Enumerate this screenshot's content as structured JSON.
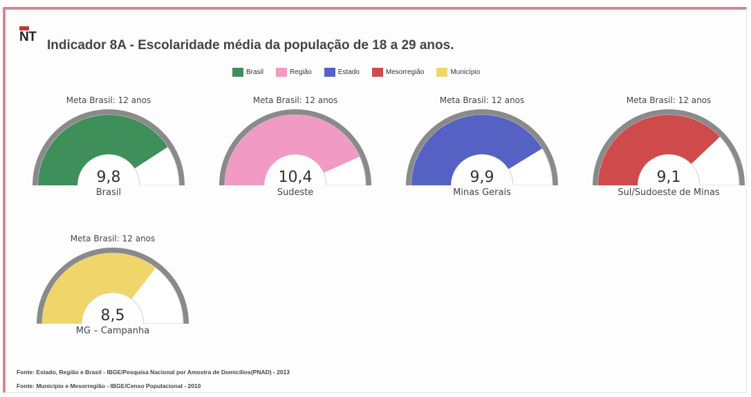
{
  "logo": {
    "text": "NT"
  },
  "title": "Indicador 8A - Escolaridade média da população de 18 a 29 anos.",
  "legend": [
    {
      "label": "Brasil",
      "color": "#3f8f5b"
    },
    {
      "label": "Região",
      "color": "#f09ac4"
    },
    {
      "label": "Estado",
      "color": "#5661c4"
    },
    {
      "label": "Mesorregião",
      "color": "#cf4b4b"
    },
    {
      "label": "Município",
      "color": "#f0d56a"
    }
  ],
  "chart_data": [
    {
      "type": "gauge",
      "title": "Meta Brasil: 12 anos",
      "value": 9.8,
      "value_label": "9,8",
      "name": "Brasil",
      "min": 0,
      "max": 12,
      "color": "#3f8f5b"
    },
    {
      "type": "gauge",
      "title": "Meta Brasil: 12 anos",
      "value": 10.4,
      "value_label": "10,4",
      "name": "Sudeste",
      "min": 0,
      "max": 12,
      "color": "#f09ac4"
    },
    {
      "type": "gauge",
      "title": "Meta Brasil: 12 anos",
      "value": 9.9,
      "value_label": "9,9",
      "name": "Minas Gerais",
      "min": 0,
      "max": 12,
      "color": "#5661c4"
    },
    {
      "type": "gauge",
      "title": "Meta Brasil: 12 anos",
      "value": 9.1,
      "value_label": "9,1",
      "name": "Sul/Sudoeste de Minas",
      "min": 0,
      "max": 12,
      "color": "#cf4b4b"
    },
    {
      "type": "gauge",
      "title": "Meta Brasil: 12 anos",
      "value": 8.5,
      "value_label": "8,5",
      "name": "MG – Campanha",
      "min": 0,
      "max": 12,
      "color": "#f0d56a"
    }
  ],
  "sources": [
    "Fonte: Estado, Região e Brasil - IBGE/Pesquisa Nacional por Amostra de Domicílios(PNAD) - 2013",
    "Fonte: Município e Mesorregião - IBGE/Censo Populacional - 2010"
  ]
}
